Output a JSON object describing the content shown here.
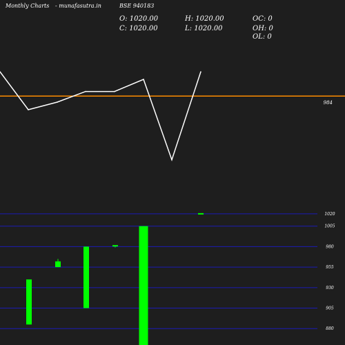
{
  "header": {
    "site_left": "Monthly Charts",
    "site_right": "- munafasutra.in",
    "symbol": "BSE 940183",
    "open": "O: 1020.00",
    "close": "C: 1020.00",
    "high": "H: 1020.00",
    "low": "L: 1020.00",
    "oc": "OC: 0",
    "oh": "OH: 0",
    "ol": "OL: 0"
  },
  "colors": {
    "background": "#1e1e1e",
    "line": "#ffffff",
    "reference_line": "#ff8c00",
    "candle_up": "#00ff00",
    "grid": "#1b1bb5",
    "text": "#ffffff"
  },
  "chart_data": [
    {
      "type": "line",
      "series": [
        {
          "values": [
            1000,
            975,
            980,
            987,
            987,
            995,
            942,
            1000
          ]
        }
      ],
      "reference_line": {
        "value": 984,
        "label": "984"
      },
      "ylim": [
        920,
        1020
      ]
    },
    {
      "type": "candlestick",
      "ylim": [
        860,
        1030
      ],
      "grid_values": [
        1020,
        1005,
        980,
        955,
        930,
        905,
        880
      ],
      "y_tick_labels": [
        "1020",
        "1005",
        "980",
        "955",
        "930",
        "905",
        "880"
      ],
      "candles": [
        {
          "open": 885,
          "high": 940,
          "low": 885,
          "close": 940,
          "direction": "up"
        },
        {
          "open": 955,
          "high": 965,
          "low": 955,
          "close": 962,
          "direction": "up"
        },
        {
          "open": 905,
          "high": 980,
          "low": 905,
          "close": 980,
          "direction": "up"
        },
        {
          "open": 980,
          "high": 981,
          "low": 979,
          "close": 981,
          "direction": "up"
        },
        {
          "open": 860,
          "high": 1005,
          "low": 860,
          "close": 1005,
          "direction": "up"
        },
        {
          "open": 1020,
          "high": 1020,
          "low": 1020,
          "close": 1020,
          "direction": "flat"
        }
      ]
    }
  ]
}
